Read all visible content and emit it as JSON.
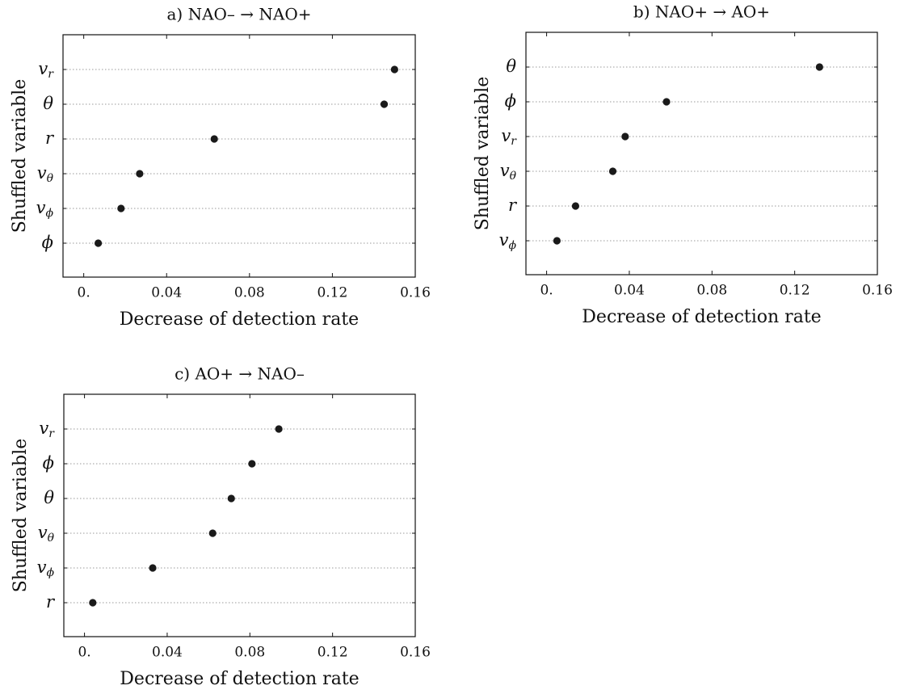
{
  "chart_data": [
    {
      "type": "scatter",
      "title": "a)  NAO–  →  NAO+",
      "xlabel": "Decrease of detection rate",
      "ylabel": "Shuffled variable",
      "xlim": [
        -0.01,
        0.16
      ],
      "xticks": [
        0,
        0.04,
        0.08,
        0.12,
        0.16
      ],
      "xtick_labels": [
        "0.",
        "0.04",
        "0.08",
        "0.12",
        "0.16"
      ],
      "categories": [
        {
          "base": "v",
          "sub": "r"
        },
        {
          "base": "θ",
          "sub": ""
        },
        {
          "base": "r",
          "sub": ""
        },
        {
          "base": "v",
          "sub": "θ"
        },
        {
          "base": "v",
          "sub": "ϕ"
        },
        {
          "base": "ϕ",
          "sub": ""
        }
      ],
      "values": [
        0.15,
        0.145,
        0.063,
        0.027,
        0.018,
        0.007
      ],
      "grid": "horizontal dotted"
    },
    {
      "type": "scatter",
      "title": "b)  NAO+  →  AO+",
      "xlabel": "Decrease of detection rate",
      "ylabel": "Shuffled variable",
      "xlim": [
        -0.01,
        0.16
      ],
      "xticks": [
        0,
        0.04,
        0.08,
        0.12,
        0.16
      ],
      "xtick_labels": [
        "0.",
        "0.04",
        "0.08",
        "0.12",
        "0.16"
      ],
      "categories": [
        {
          "base": "θ",
          "sub": ""
        },
        {
          "base": "ϕ",
          "sub": ""
        },
        {
          "base": "v",
          "sub": "r"
        },
        {
          "base": "v",
          "sub": "θ"
        },
        {
          "base": "r",
          "sub": ""
        },
        {
          "base": "v",
          "sub": "ϕ"
        }
      ],
      "values": [
        0.132,
        0.058,
        0.038,
        0.032,
        0.014,
        0.005
      ],
      "grid": "horizontal dotted"
    },
    {
      "type": "scatter",
      "title": "c)  AO+  →  NAO–",
      "xlabel": "Decrease of detection rate",
      "ylabel": "Shuffled variable",
      "xlim": [
        -0.01,
        0.16
      ],
      "xticks": [
        0,
        0.04,
        0.08,
        0.12,
        0.16
      ],
      "xtick_labels": [
        "0.",
        "0.04",
        "0.08",
        "0.12",
        "0.16"
      ],
      "categories": [
        {
          "base": "v",
          "sub": "r"
        },
        {
          "base": "ϕ",
          "sub": ""
        },
        {
          "base": "θ",
          "sub": ""
        },
        {
          "base": "v",
          "sub": "θ"
        },
        {
          "base": "v",
          "sub": "ϕ"
        },
        {
          "base": "r",
          "sub": ""
        }
      ],
      "values": [
        0.094,
        0.081,
        0.071,
        0.062,
        0.033,
        0.004
      ],
      "grid": "horizontal dotted"
    }
  ]
}
